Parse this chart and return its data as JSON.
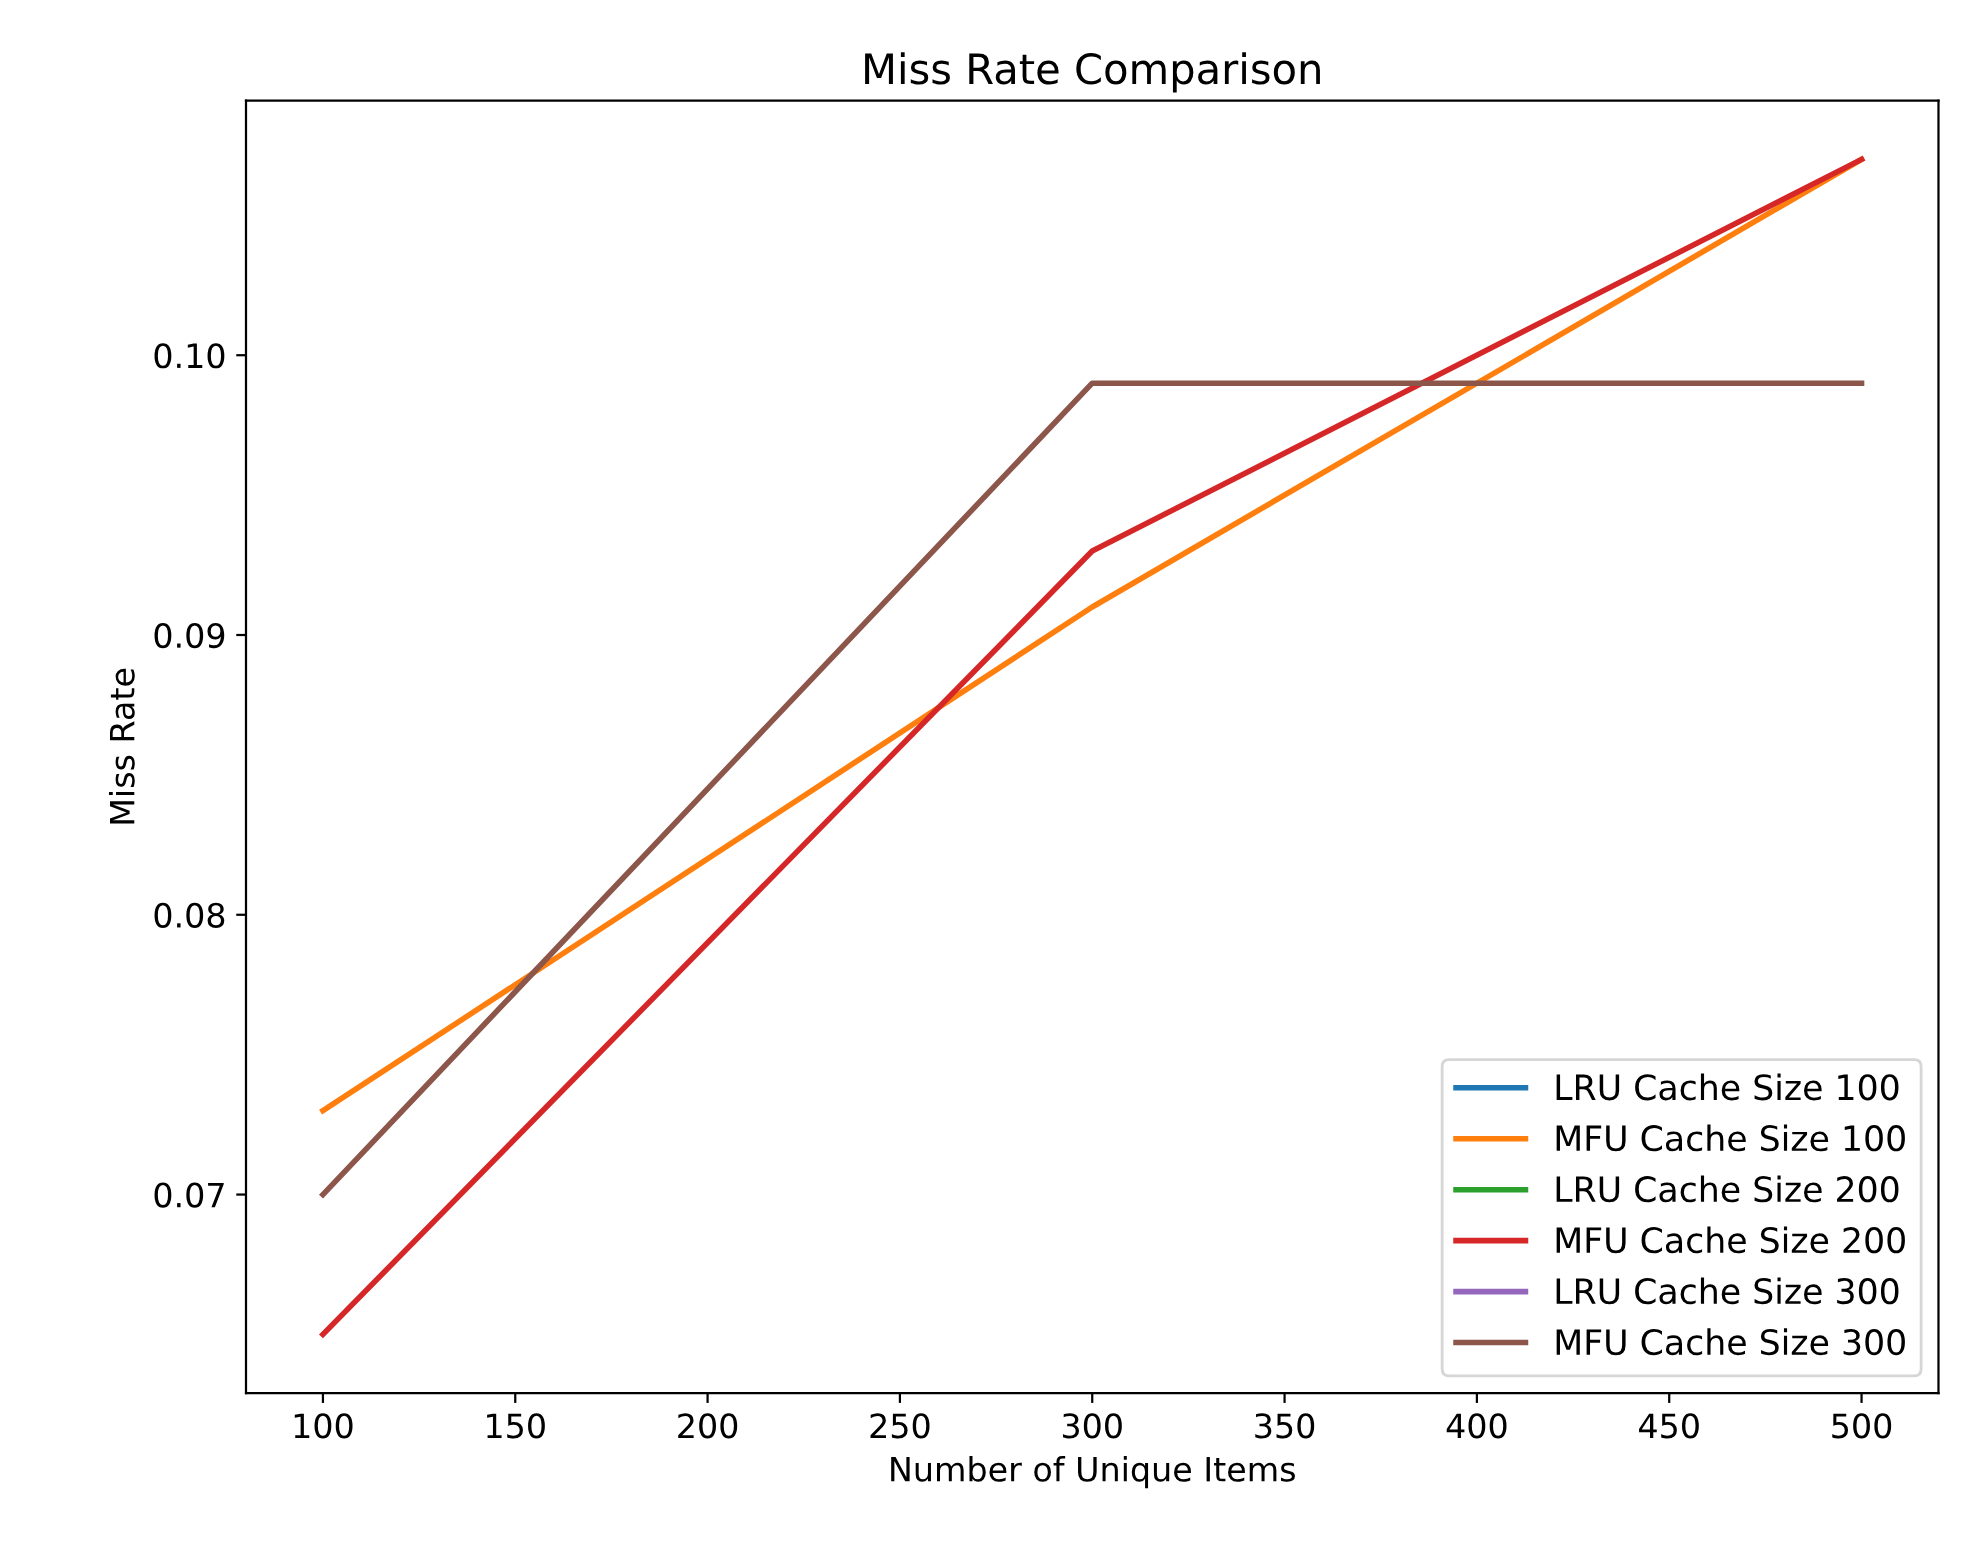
{
  "chart_data": {
    "type": "line",
    "x": [
      100,
      300,
      500
    ],
    "title": "Miss Rate Comparison",
    "xlabel": "Number of Unique Items",
    "ylabel": "Miss Rate",
    "series": [
      {
        "name": "LRU Cache Size 100",
        "color": "#1f77b4",
        "values": [
          null,
          null,
          null
        ]
      },
      {
        "name": "MFU Cache Size 100",
        "color": "#ff7f0e",
        "values": [
          0.073,
          0.091,
          0.107
        ]
      },
      {
        "name": "LRU Cache Size 200",
        "color": "#2ca02c",
        "values": [
          null,
          null,
          null
        ]
      },
      {
        "name": "MFU Cache Size 200",
        "color": "#d62728",
        "values": [
          0.065,
          0.093,
          0.107
        ]
      },
      {
        "name": "LRU Cache Size 300",
        "color": "#9467bd",
        "values": [
          null,
          null,
          null
        ]
      },
      {
        "name": "MFU Cache Size 300",
        "color": "#8c564b",
        "values": [
          0.07,
          0.099,
          0.099
        ]
      }
    ],
    "xlim": [
      80,
      520
    ],
    "xticks": [
      100,
      150,
      200,
      250,
      300,
      350,
      400,
      450,
      500
    ],
    "ylim": [
      0.0629,
      0.1091
    ],
    "yticks": [
      {
        "value": 0.07,
        "label": "0.07"
      },
      {
        "value": 0.08,
        "label": "0.08"
      },
      {
        "value": 0.09,
        "label": "0.09"
      },
      {
        "value": 0.1,
        "label": "0.10"
      }
    ],
    "legend": "lower right",
    "grid": false,
    "marker": "none",
    "line_style": "solid"
  }
}
